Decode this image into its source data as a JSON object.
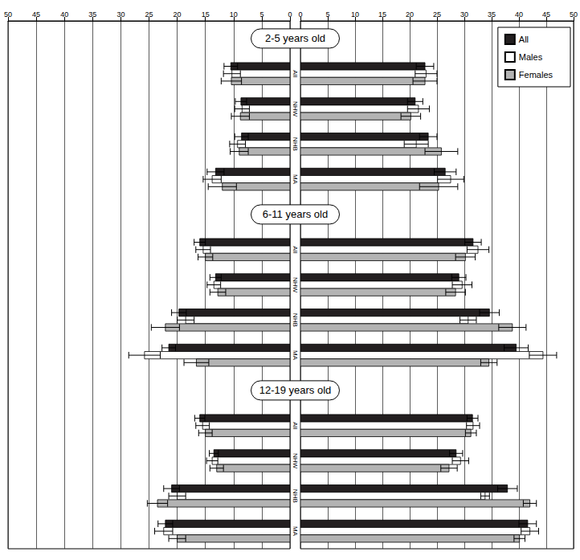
{
  "chart_data": {
    "type": "bar",
    "orientation": "horizontal",
    "grid": true,
    "legend": "upper right",
    "xlim": [
      0,
      50
    ],
    "xticks": [
      0,
      5,
      10,
      15,
      20,
      25,
      30,
      35,
      40,
      45,
      50
    ],
    "groups": [
      {
        "label": "2-5 years old",
        "categories": [
          "All",
          "NHW",
          "NHB",
          "MA"
        ]
      },
      {
        "label": "6-11 years old",
        "categories": [
          "All",
          "NHW",
          "NHB",
          "MA"
        ]
      },
      {
        "label": "12-19 years old",
        "categories": [
          "All",
          "NHW",
          "NHB",
          "MA"
        ]
      }
    ],
    "series": [
      {
        "name": "All",
        "color": "#231f20",
        "left_values": [
          10.5,
          8.7,
          8.6,
          13.2,
          16.0,
          13.2,
          19.7,
          21.5,
          16.0,
          13.5,
          21.0,
          22.1
        ],
        "left_errors": [
          1.2,
          1.0,
          1.2,
          1.5,
          1.0,
          1.0,
          1.3,
          1.2,
          0.9,
          0.8,
          1.4,
          1.3
        ],
        "right_values": [
          22.8,
          21.0,
          23.4,
          26.5,
          31.6,
          29.0,
          34.6,
          39.5,
          31.5,
          28.5,
          37.9,
          41.6
        ],
        "right_errors": [
          1.6,
          1.4,
          1.6,
          2.0,
          1.5,
          1.3,
          1.8,
          2.2,
          1.0,
          1.2,
          1.8,
          1.6
        ]
      },
      {
        "name": "Males",
        "color": "#ffffff",
        "left_values": [
          10.3,
          8.5,
          9.3,
          13.8,
          15.4,
          13.5,
          18.5,
          25.8,
          15.5,
          13.8,
          20.0,
          22.4
        ],
        "left_errors": [
          1.5,
          1.3,
          1.4,
          1.6,
          1.3,
          1.2,
          1.5,
          2.8,
          1.2,
          1.0,
          1.5,
          1.6
        ],
        "right_values": [
          23.0,
          21.6,
          21.2,
          27.5,
          32.5,
          29.6,
          30.7,
          44.4,
          31.6,
          29.3,
          33.8,
          42.0
        ],
        "right_errors": [
          2.0,
          2.0,
          2.2,
          2.4,
          2.0,
          1.8,
          1.5,
          2.5,
          1.2,
          1.5,
          0.8,
          1.6
        ]
      },
      {
        "name": "Females",
        "color": "#b3b3b3",
        "left_values": [
          10.4,
          8.8,
          9.0,
          12.0,
          15.0,
          12.8,
          22.1,
          16.6,
          15.0,
          13.0,
          23.5,
          20.0
        ],
        "left_errors": [
          1.8,
          1.6,
          1.6,
          2.5,
          1.3,
          1.4,
          2.5,
          2.2,
          1.2,
          1.2,
          1.8,
          1.5
        ],
        "right_values": [
          22.8,
          20.2,
          25.8,
          25.3,
          30.2,
          28.4,
          38.8,
          34.5,
          31.2,
          27.2,
          42.0,
          40.1
        ],
        "right_errors": [
          2.2,
          1.8,
          3.0,
          3.5,
          1.8,
          1.8,
          2.5,
          1.5,
          1.0,
          1.5,
          1.2,
          1.0
        ]
      }
    ]
  }
}
